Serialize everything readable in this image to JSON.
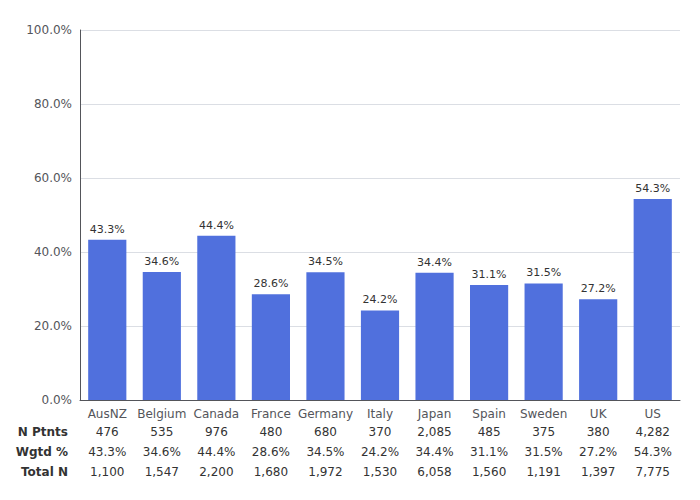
{
  "chart_data": {
    "type": "bar",
    "categories": [
      "AusNZ",
      "Belgium",
      "Canada",
      "France",
      "Germany",
      "Italy",
      "Japan",
      "Spain",
      "Sweden",
      "UK",
      "US"
    ],
    "values": [
      43.3,
      34.6,
      44.4,
      28.6,
      34.5,
      24.2,
      34.4,
      31.1,
      31.5,
      27.2,
      54.3
    ],
    "value_labels": [
      "43.3%",
      "34.6%",
      "44.4%",
      "28.6%",
      "34.5%",
      "24.2%",
      "34.4%",
      "31.1%",
      "31.5%",
      "27.2%",
      "54.3%"
    ],
    "data_labels": true,
    "ylim": [
      0,
      100
    ],
    "yticks": [
      {
        "value": 0,
        "label": "0.0%"
      },
      {
        "value": 20,
        "label": "20.0%"
      },
      {
        "value": 40,
        "label": "40.0%"
      },
      {
        "value": 60,
        "label": "60.0%"
      },
      {
        "value": 80,
        "label": "80.0%"
      },
      {
        "value": 100,
        "label": "100.0%"
      }
    ],
    "grid": true,
    "table": {
      "row_labels": [
        "N Ptnts",
        "Wgtd %",
        "Total N"
      ],
      "rows": [
        [
          "476",
          "535",
          "976",
          "480",
          "680",
          "370",
          "2,085",
          "485",
          "375",
          "380",
          "4,282"
        ],
        [
          "43.3%",
          "34.6%",
          "44.4%",
          "28.6%",
          "34.5%",
          "24.2%",
          "34.4%",
          "31.1%",
          "31.5%",
          "27.2%",
          "54.3%"
        ],
        [
          "1,100",
          "1,547",
          "2,200",
          "1,680",
          "1,972",
          "1,530",
          "6,058",
          "1,560",
          "1,191",
          "1,397",
          "7,775"
        ]
      ]
    }
  }
}
